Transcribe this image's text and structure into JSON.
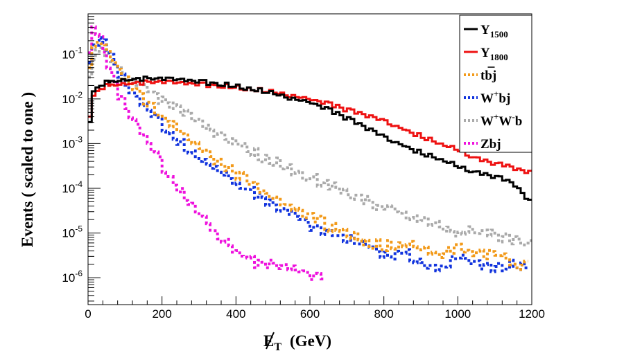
{
  "chart_data": {
    "type": "line",
    "style": "step-histogram",
    "xlabel": "E̸T (GeV)",
    "xlabel_parts": {
      "symbol": "E",
      "sub": "T",
      "units": "(GeV)"
    },
    "ylabel": "Events  ( scaled to one )",
    "xlim": [
      0,
      1200
    ],
    "ylim": [
      2.5e-07,
      0.8
    ],
    "yscale": "log",
    "x_ticks": [
      "0",
      "200",
      "400",
      "600",
      "800",
      "1000",
      "1200"
    ],
    "y_ticks": [
      {
        "base": "10",
        "exp": "-1",
        "value": 0.1
      },
      {
        "base": "10",
        "exp": "-2",
        "value": 0.01
      },
      {
        "base": "10",
        "exp": "-3",
        "value": 0.001
      },
      {
        "base": "10",
        "exp": "-4",
        "value": 0.0001
      },
      {
        "base": "10",
        "exp": "-5",
        "value": 1e-05
      },
      {
        "base": "10",
        "exp": "-6",
        "value": 1e-06
      }
    ],
    "legend_position": "top-right",
    "series": [
      {
        "key": "Y1500",
        "label_main": "Y",
        "label_sub": "1500",
        "label_sup": "",
        "label_tail": "",
        "color": "#000000",
        "dashed": false,
        "points": [
          [
            0,
            0.003
          ],
          [
            10,
            0.015
          ],
          [
            25,
            0.02
          ],
          [
            50,
            0.024
          ],
          [
            100,
            0.027
          ],
          [
            150,
            0.028
          ],
          [
            200,
            0.027
          ],
          [
            250,
            0.026
          ],
          [
            300,
            0.024
          ],
          [
            350,
            0.022
          ],
          [
            400,
            0.019
          ],
          [
            450,
            0.016
          ],
          [
            500,
            0.013
          ],
          [
            550,
            0.01
          ],
          [
            600,
            0.008
          ],
          [
            650,
            0.0055
          ],
          [
            700,
            0.0035
          ],
          [
            750,
            0.0022
          ],
          [
            800,
            0.0013
          ],
          [
            850,
            0.0009
          ],
          [
            900,
            0.0006
          ],
          [
            950,
            0.00045
          ],
          [
            1000,
            0.0003
          ],
          [
            1050,
            0.00022
          ],
          [
            1100,
            0.00018
          ],
          [
            1150,
            0.00012
          ],
          [
            1200,
            4e-05
          ]
        ]
      },
      {
        "key": "Y1800",
        "label_main": "Y",
        "label_sub": "1800",
        "label_sup": "",
        "label_tail": "",
        "color": "#ee1111",
        "dashed": false,
        "points": [
          [
            0,
            0.004
          ],
          [
            10,
            0.012
          ],
          [
            25,
            0.017
          ],
          [
            50,
            0.02
          ],
          [
            100,
            0.022
          ],
          [
            150,
            0.023
          ],
          [
            200,
            0.023
          ],
          [
            250,
            0.022
          ],
          [
            300,
            0.021
          ],
          [
            350,
            0.02
          ],
          [
            400,
            0.018
          ],
          [
            450,
            0.016
          ],
          [
            500,
            0.014
          ],
          [
            550,
            0.0115
          ],
          [
            600,
            0.0095
          ],
          [
            650,
            0.0075
          ],
          [
            700,
            0.0055
          ],
          [
            750,
            0.0042
          ],
          [
            800,
            0.003
          ],
          [
            850,
            0.0021
          ],
          [
            900,
            0.0014
          ],
          [
            950,
            0.001
          ],
          [
            1000,
            0.0007
          ],
          [
            1050,
            0.00045
          ],
          [
            1100,
            0.00035
          ],
          [
            1150,
            0.00028
          ],
          [
            1200,
            0.00021
          ]
        ]
      },
      {
        "key": "tbbarj",
        "label_main": "tb",
        "label_sub": "",
        "label_sup": "",
        "label_tail": "j",
        "color": "#f29a1a",
        "dashed": true,
        "points": [
          [
            0,
            0.05
          ],
          [
            10,
            0.12
          ],
          [
            25,
            0.18
          ],
          [
            40,
            0.15
          ],
          [
            60,
            0.08
          ],
          [
            80,
            0.045
          ],
          [
            100,
            0.025
          ],
          [
            150,
            0.009
          ],
          [
            200,
            0.004
          ],
          [
            250,
            0.0018
          ],
          [
            300,
            0.0008
          ],
          [
            350,
            0.0004
          ],
          [
            400,
            0.0002
          ],
          [
            450,
            0.00011
          ],
          [
            500,
            6e-05
          ],
          [
            550,
            3.5e-05
          ],
          [
            600,
            2.2e-05
          ],
          [
            650,
            1.4e-05
          ],
          [
            700,
            1e-05
          ],
          [
            750,
            6e-06
          ],
          [
            800,
            5e-06
          ],
          [
            850,
            6e-06
          ],
          [
            900,
            4e-06
          ],
          [
            950,
            3e-06
          ],
          [
            1000,
            5e-06
          ],
          [
            1050,
            3e-06
          ],
          [
            1100,
            4e-06
          ],
          [
            1150,
            2e-06
          ]
        ]
      },
      {
        "key": "Wbj",
        "label_main": "W",
        "label_sub": "",
        "label_sup": "+",
        "label_tail": "bj",
        "color": "#1133dd",
        "dashed": true,
        "points": [
          [
            0,
            0.06
          ],
          [
            10,
            0.15
          ],
          [
            25,
            0.23
          ],
          [
            40,
            0.19
          ],
          [
            60,
            0.09
          ],
          [
            80,
            0.04
          ],
          [
            100,
            0.02
          ],
          [
            150,
            0.006
          ],
          [
            200,
            0.0025
          ],
          [
            250,
            0.001
          ],
          [
            300,
            0.0005
          ],
          [
            350,
            0.00025
          ],
          [
            400,
            0.00013
          ],
          [
            450,
            7e-05
          ],
          [
            500,
            4e-05
          ],
          [
            550,
            2.5e-05
          ],
          [
            600,
            1.5e-05
          ],
          [
            650,
            1e-05
          ],
          [
            700,
            8e-06
          ],
          [
            750,
            6e-06
          ],
          [
            800,
            3e-06
          ],
          [
            850,
            4e-06
          ],
          [
            900,
            2e-06
          ],
          [
            950,
            1.5e-06
          ],
          [
            1000,
            3e-06
          ],
          [
            1050,
            2e-06
          ],
          [
            1100,
            1.5e-06
          ],
          [
            1150,
            2e-06
          ]
        ]
      },
      {
        "key": "WW",
        "label_main": "W",
        "label_sub": "",
        "label_sup": "+",
        "label_tail": "W",
        "label_sup2": "-",
        "label_tail2": "b",
        "color": "#aaaaaa",
        "dashed": true,
        "points": [
          [
            0,
            0.04
          ],
          [
            10,
            0.09
          ],
          [
            25,
            0.12
          ],
          [
            40,
            0.11
          ],
          [
            60,
            0.07
          ],
          [
            80,
            0.05
          ],
          [
            100,
            0.035
          ],
          [
            150,
            0.018
          ],
          [
            200,
            0.009
          ],
          [
            250,
            0.005
          ],
          [
            300,
            0.0028
          ],
          [
            350,
            0.0016
          ],
          [
            400,
            0.001
          ],
          [
            450,
            0.0006
          ],
          [
            500,
            0.0004
          ],
          [
            550,
            0.00025
          ],
          [
            600,
            0.00017
          ],
          [
            650,
            0.00011
          ],
          [
            700,
            7e-05
          ],
          [
            750,
            5e-05
          ],
          [
            800,
            3.5e-05
          ],
          [
            850,
            2.8e-05
          ],
          [
            900,
            2e-05
          ],
          [
            950,
            1.5e-05
          ],
          [
            1000,
            1e-05
          ],
          [
            1050,
            1.2e-05
          ],
          [
            1100,
            8.5e-06
          ],
          [
            1150,
            7e-06
          ],
          [
            1200,
            5e-06
          ]
        ]
      },
      {
        "key": "Zbj",
        "label_main": "Zbj",
        "label_sub": "",
        "label_sup": "",
        "label_tail": "",
        "color": "#ee11dd",
        "dashed": true,
        "points": [
          [
            0,
            0.1
          ],
          [
            10,
            0.38
          ],
          [
            20,
            0.35
          ],
          [
            30,
            0.2
          ],
          [
            40,
            0.1
          ],
          [
            60,
            0.035
          ],
          [
            80,
            0.013
          ],
          [
            100,
            0.006
          ],
          [
            150,
            0.0012
          ],
          [
            200,
            0.0003
          ],
          [
            250,
            8e-05
          ],
          [
            300,
            3e-05
          ],
          [
            350,
            8e-06
          ],
          [
            400,
            4e-06
          ],
          [
            450,
            2e-06
          ],
          [
            500,
            2e-06
          ],
          [
            550,
            1.5e-06
          ],
          [
            600,
            1.2e-06
          ]
        ]
      }
    ]
  }
}
